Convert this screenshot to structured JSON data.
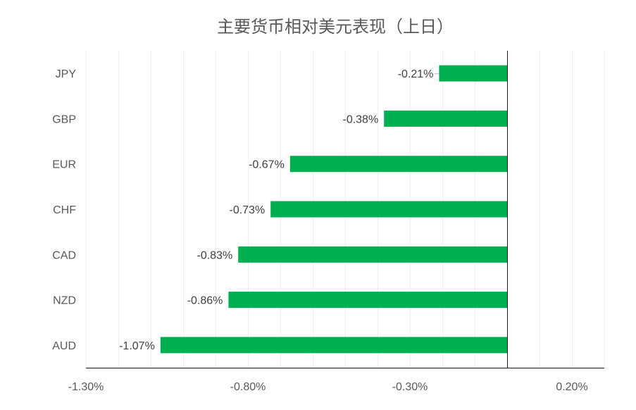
{
  "chart_data": {
    "type": "bar",
    "orientation": "horizontal",
    "title": "主要货币相对美元表现（上日）",
    "xlabel": "",
    "ylabel": "",
    "categories": [
      "JPY",
      "GBP",
      "EUR",
      "CHF",
      "CAD",
      "NZD",
      "AUD"
    ],
    "values": [
      -0.21,
      -0.38,
      -0.67,
      -0.73,
      -0.83,
      -0.86,
      -1.07
    ],
    "data_labels": [
      "-0.21%",
      "-0.38%",
      "-0.67%",
      "-0.73%",
      "-0.83%",
      "-0.86%",
      "-1.07%"
    ],
    "xlim": [
      -1.3,
      0.3
    ],
    "xticks": [
      -1.3,
      -0.8,
      -0.3,
      0.2
    ],
    "xtick_labels": [
      "-1.30%",
      "-0.80%",
      "-0.30%",
      "0.20%"
    ],
    "bar_color": "#00b050",
    "grid": true,
    "legend": "none"
  }
}
